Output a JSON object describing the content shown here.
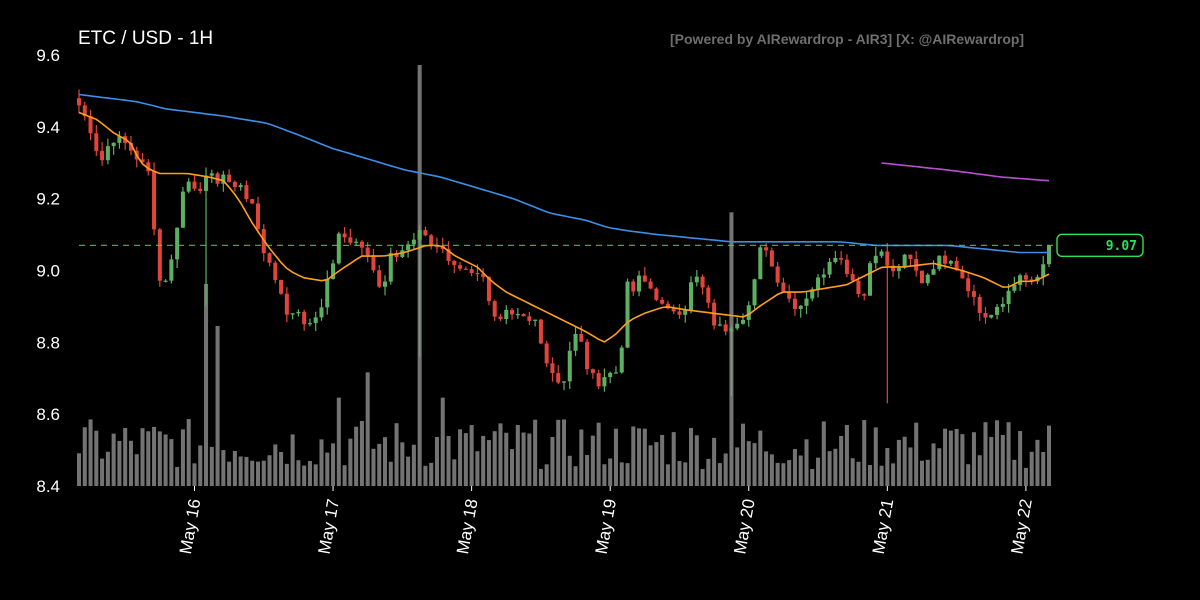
{
  "header": {
    "title": "ETC / USD - 1H",
    "watermark": "[Powered by AIRewardrop - AIR3] [X: @AIRewardrop]"
  },
  "colors": {
    "background": "#000000",
    "up": "#5bb062",
    "down": "#e0443c",
    "volume": "#9a9a9a",
    "ma_fast": "#ff9f1a",
    "ma_mid": "#3d8fe6",
    "ma_slow": "#b84fd1",
    "last_price": "#2fe05a"
  },
  "chart_data": {
    "type": "candlestick",
    "symbol": "ETC / USD",
    "interval": "1H",
    "ylim": [
      8.4,
      9.6
    ],
    "yticks": [
      8.4,
      8.6,
      8.8,
      9.0,
      9.2,
      9.4,
      9.6
    ],
    "x_start": "May 15 04:00",
    "x_end": "May 22 01:00",
    "xticks": [
      "May 16",
      "May 17",
      "May 18",
      "May 19",
      "May 20",
      "May 21",
      "May 22"
    ],
    "last_price": 9.07,
    "last_price_label": "9.07",
    "close_path": [
      [
        0,
        9.46
      ],
      [
        3,
        9.4
      ],
      [
        6,
        9.3
      ],
      [
        9,
        9.37
      ],
      [
        12,
        9.36
      ],
      [
        15,
        9.33
      ],
      [
        17,
        9.3
      ],
      [
        20,
        9.26
      ],
      [
        21,
        9.08
      ],
      [
        22,
        8.97
      ],
      [
        24,
        8.98
      ],
      [
        26,
        9.04
      ],
      [
        28,
        9.2
      ],
      [
        30,
        9.25
      ],
      [
        33,
        9.23
      ],
      [
        36,
        9.26
      ],
      [
        38,
        9.25
      ],
      [
        40,
        9.27
      ],
      [
        42,
        9.22
      ],
      [
        44,
        9.26
      ],
      [
        46,
        9.2
      ],
      [
        48,
        9.18
      ],
      [
        50,
        9.1
      ],
      [
        52,
        9.02
      ],
      [
        54,
        8.98
      ],
      [
        56,
        8.94
      ],
      [
        58,
        8.85
      ],
      [
        60,
        8.92
      ],
      [
        62,
        8.84
      ],
      [
        64,
        8.86
      ],
      [
        66,
        8.88
      ],
      [
        68,
        8.94
      ],
      [
        70,
        9.02
      ],
      [
        72,
        9.1
      ],
      [
        74,
        9.09
      ],
      [
        76,
        9.08
      ],
      [
        78,
        9.07
      ],
      [
        80,
        9.03
      ],
      [
        82,
        8.98
      ],
      [
        84,
        8.95
      ],
      [
        86,
        9.05
      ],
      [
        88,
        9.05
      ],
      [
        90,
        9.08
      ],
      [
        92,
        9.07
      ],
      [
        94,
        9.11
      ],
      [
        96,
        9.08
      ],
      [
        98,
        9.07
      ],
      [
        100,
        9.07
      ],
      [
        102,
        9.03
      ],
      [
        104,
        9.0
      ],
      [
        106,
        9.01
      ],
      [
        108,
        9.0
      ],
      [
        110,
        9.0
      ],
      [
        112,
        8.97
      ],
      [
        114,
        8.9
      ],
      [
        116,
        8.85
      ],
      [
        118,
        8.88
      ],
      [
        120,
        8.86
      ],
      [
        122,
        8.87
      ],
      [
        124,
        8.85
      ],
      [
        126,
        8.86
      ],
      [
        128,
        8.78
      ],
      [
        130,
        8.74
      ],
      [
        132,
        8.69
      ],
      [
        134,
        8.7
      ],
      [
        136,
        8.8
      ],
      [
        138,
        8.83
      ],
      [
        140,
        8.74
      ],
      [
        142,
        8.7
      ],
      [
        144,
        8.69
      ],
      [
        146,
        8.72
      ],
      [
        148,
        8.7
      ],
      [
        150,
        8.8
      ],
      [
        151,
        8.96
      ],
      [
        153,
        8.94
      ],
      [
        155,
        8.98
      ],
      [
        157,
        8.96
      ],
      [
        159,
        8.94
      ],
      [
        161,
        8.9
      ],
      [
        163,
        8.88
      ],
      [
        165,
        8.9
      ],
      [
        167,
        8.88
      ],
      [
        169,
        8.96
      ],
      [
        171,
        8.98
      ],
      [
        173,
        8.93
      ],
      [
        175,
        8.86
      ],
      [
        177,
        8.84
      ],
      [
        179,
        8.84
      ],
      [
        181,
        8.86
      ],
      [
        183,
        8.87
      ],
      [
        185,
        8.9
      ],
      [
        187,
        8.98
      ],
      [
        189,
        9.1
      ],
      [
        191,
        9.02
      ],
      [
        193,
        8.98
      ],
      [
        195,
        8.94
      ],
      [
        197,
        8.91
      ],
      [
        199,
        8.9
      ],
      [
        201,
        8.93
      ],
      [
        203,
        8.96
      ],
      [
        205,
        8.98
      ],
      [
        207,
        9.03
      ],
      [
        209,
        9.05
      ],
      [
        211,
        9.02
      ],
      [
        213,
        8.99
      ],
      [
        215,
        8.95
      ],
      [
        217,
        8.93
      ],
      [
        219,
        9.05
      ],
      [
        221,
        9.06
      ],
      [
        223,
        9.02
      ],
      [
        225,
        8.99
      ],
      [
        227,
        9.02
      ],
      [
        229,
        9.04
      ],
      [
        231,
        9.0
      ],
      [
        233,
        8.97
      ],
      [
        235,
        9.0
      ],
      [
        237,
        9.03
      ],
      [
        239,
        9.03
      ],
      [
        241,
        9.04
      ],
      [
        243,
        9.0
      ],
      [
        245,
        8.97
      ],
      [
        247,
        8.93
      ],
      [
        249,
        8.88
      ],
      [
        251,
        8.87
      ],
      [
        253,
        8.88
      ],
      [
        255,
        8.9
      ],
      [
        257,
        8.95
      ],
      [
        259,
        8.98
      ],
      [
        261,
        8.97
      ],
      [
        263,
        8.97
      ],
      [
        265,
        8.97
      ],
      [
        267,
        9.03
      ],
      [
        268,
        9.07
      ]
    ],
    "spikes": [
      {
        "index": 22,
        "low": 8.9
      },
      {
        "index": 59,
        "low": 8.76
      },
      {
        "index": 113,
        "low": 8.65
      },
      {
        "index": 140,
        "low": 8.63
      },
      {
        "index": 186,
        "high": 9.11
      }
    ],
    "volume_spikes": [
      {
        "index": 22,
        "value": 0.48
      },
      {
        "index": 24,
        "value": 0.38
      },
      {
        "index": 45,
        "value": 0.21
      },
      {
        "index": 50,
        "value": 0.27
      },
      {
        "index": 59,
        "value": 1.0
      },
      {
        "index": 63,
        "value": 0.21
      },
      {
        "index": 113,
        "value": 0.65
      },
      {
        "index": 186,
        "value": 0.83
      }
    ],
    "ma_fast": [
      [
        0,
        9.44
      ],
      [
        5,
        9.42
      ],
      [
        10,
        9.38
      ],
      [
        14,
        9.36
      ],
      [
        16,
        9.32
      ],
      [
        18,
        9.29
      ],
      [
        22,
        9.27
      ],
      [
        30,
        9.27
      ],
      [
        36,
        9.26
      ],
      [
        40,
        9.25
      ],
      [
        44,
        9.2
      ],
      [
        48,
        9.13
      ],
      [
        52,
        9.07
      ],
      [
        56,
        9.02
      ],
      [
        58,
        9.0
      ],
      [
        62,
        8.98
      ],
      [
        68,
        8.97
      ],
      [
        72,
        9.0
      ],
      [
        78,
        9.04
      ],
      [
        84,
        9.04
      ],
      [
        90,
        9.05
      ],
      [
        96,
        9.07
      ],
      [
        100,
        9.07
      ],
      [
        104,
        9.04
      ],
      [
        110,
        9.01
      ],
      [
        114,
        8.97
      ],
      [
        118,
        8.94
      ],
      [
        124,
        8.91
      ],
      [
        130,
        8.88
      ],
      [
        136,
        8.85
      ],
      [
        140,
        8.83
      ],
      [
        145,
        8.8
      ],
      [
        148,
        8.82
      ],
      [
        152,
        8.86
      ],
      [
        156,
        8.88
      ],
      [
        162,
        8.9
      ],
      [
        168,
        8.89
      ],
      [
        176,
        8.88
      ],
      [
        184,
        8.87
      ],
      [
        188,
        8.9
      ],
      [
        194,
        8.94
      ],
      [
        200,
        8.94
      ],
      [
        206,
        8.95
      ],
      [
        212,
        8.96
      ],
      [
        218,
        8.99
      ],
      [
        222,
        9.01
      ],
      [
        228,
        9.01
      ],
      [
        236,
        9.02
      ],
      [
        244,
        9.0
      ],
      [
        250,
        8.98
      ],
      [
        256,
        8.95
      ],
      [
        260,
        8.97
      ],
      [
        264,
        8.97
      ],
      [
        268,
        8.99
      ]
    ],
    "ma_mid": [
      [
        0,
        9.49
      ],
      [
        16,
        9.47
      ],
      [
        24,
        9.45
      ],
      [
        40,
        9.43
      ],
      [
        52,
        9.41
      ],
      [
        60,
        9.38
      ],
      [
        70,
        9.34
      ],
      [
        80,
        9.31
      ],
      [
        90,
        9.28
      ],
      [
        100,
        9.26
      ],
      [
        110,
        9.23
      ],
      [
        120,
        9.2
      ],
      [
        130,
        9.16
      ],
      [
        140,
        9.14
      ],
      [
        146,
        9.12
      ],
      [
        152,
        9.11
      ],
      [
        160,
        9.1
      ],
      [
        170,
        9.09
      ],
      [
        180,
        9.08
      ],
      [
        192,
        9.08
      ],
      [
        200,
        9.08
      ],
      [
        210,
        9.08
      ],
      [
        220,
        9.07
      ],
      [
        230,
        9.07
      ],
      [
        240,
        9.07
      ],
      [
        250,
        9.06
      ],
      [
        260,
        9.05
      ],
      [
        268,
        9.05
      ]
    ],
    "ma_slow": [
      [
        221,
        9.3
      ],
      [
        240,
        9.28
      ],
      [
        255,
        9.26
      ],
      [
        268,
        9.25
      ]
    ]
  }
}
